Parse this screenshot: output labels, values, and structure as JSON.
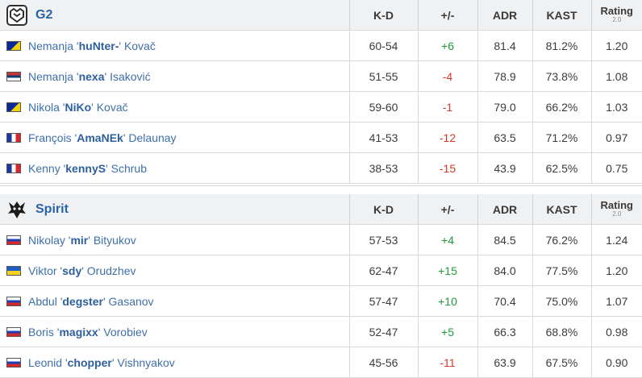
{
  "columns": {
    "kd": "K-D",
    "pm": "+/-",
    "adr": "ADR",
    "kast": "KAST",
    "rating": "Rating",
    "rating_sub": "2.0"
  },
  "teams": [
    {
      "name": "G2",
      "logo_icon": "g2-logo-icon",
      "players": [
        {
          "first": "Nemanja",
          "nick": "huNter-",
          "last": "Kovač",
          "flag": "bosnia-flag-icon",
          "kd": "60-54",
          "pm": "+6",
          "adr": "81.4",
          "kast": "81.2%",
          "rating": "1.20"
        },
        {
          "first": "Nemanja",
          "nick": "nexa",
          "last": "Isaković",
          "flag": "serbia-flag-icon",
          "kd": "51-55",
          "pm": "-4",
          "adr": "78.9",
          "kast": "73.8%",
          "rating": "1.08"
        },
        {
          "first": "Nikola",
          "nick": "NiKo",
          "last": "Kovač",
          "flag": "bosnia-flag-icon",
          "kd": "59-60",
          "pm": "-1",
          "adr": "79.0",
          "kast": "66.2%",
          "rating": "1.03"
        },
        {
          "first": "François",
          "nick": "AmaNEk",
          "last": "Delaunay",
          "flag": "france-flag-icon",
          "kd": "41-53",
          "pm": "-12",
          "adr": "63.5",
          "kast": "71.2%",
          "rating": "0.97"
        },
        {
          "first": "Kenny",
          "nick": "kennyS",
          "last": "Schrub",
          "flag": "france-flag-icon",
          "kd": "38-53",
          "pm": "-15",
          "adr": "43.9",
          "kast": "62.5%",
          "rating": "0.75"
        }
      ]
    },
    {
      "name": "Spirit",
      "logo_icon": "spirit-logo-icon",
      "players": [
        {
          "first": "Nikolay",
          "nick": "mir",
          "last": "Bityukov",
          "flag": "russia-flag-icon",
          "kd": "57-53",
          "pm": "+4",
          "adr": "84.5",
          "kast": "76.2%",
          "rating": "1.24"
        },
        {
          "first": "Viktor",
          "nick": "sdy",
          "last": "Orudzhev",
          "flag": "ukraine-flag-icon",
          "kd": "62-47",
          "pm": "+15",
          "adr": "84.0",
          "kast": "77.5%",
          "rating": "1.20"
        },
        {
          "first": "Abdul",
          "nick": "degster",
          "last": "Gasanov",
          "flag": "russia-flag-icon",
          "kd": "57-47",
          "pm": "+10",
          "adr": "70.4",
          "kast": "75.0%",
          "rating": "1.07"
        },
        {
          "first": "Boris",
          "nick": "magixx",
          "last": "Vorobiev",
          "flag": "russia-flag-icon",
          "kd": "52-47",
          "pm": "+5",
          "adr": "66.3",
          "kast": "68.8%",
          "rating": "0.98"
        },
        {
          "first": "Leonid",
          "nick": "chopper",
          "last": "Vishnyakov",
          "flag": "russia-flag-icon",
          "kd": "45-56",
          "pm": "-11",
          "adr": "63.9",
          "kast": "67.5%",
          "rating": "0.90"
        }
      ]
    }
  ]
}
